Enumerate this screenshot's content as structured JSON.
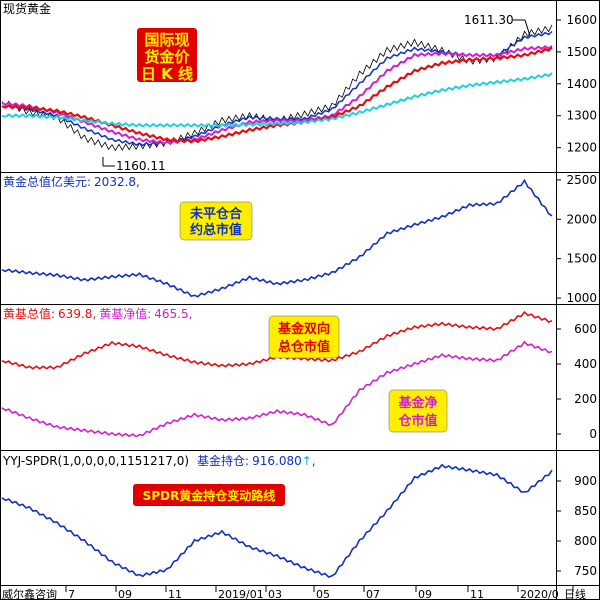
{
  "panel1": {
    "label": "现货黄金",
    "title_box": [
      "国际现",
      "货金价",
      "日 K 线"
    ],
    "high_label": "1611.30",
    "low_label": "1160.11",
    "yticks": [
      1600,
      1500,
      1400,
      1300,
      1200
    ]
  },
  "panel2": {
    "label_name": "黄金总值亿美元:",
    "label_value": "2032.8,",
    "title_box": [
      "未平仓合",
      "约总市值"
    ],
    "yticks": [
      2500,
      2000,
      1500,
      1000
    ]
  },
  "panel3": {
    "label1_name": "黄基总值:",
    "label1_value": "639.8,",
    "label2_name": "黄基净值:",
    "label2_value": "465.5,",
    "box_red": [
      "基金双向",
      "总仓市值"
    ],
    "box_magenta": [
      "基金净",
      "仓市值"
    ],
    "yticks": [
      600,
      400,
      200,
      0
    ]
  },
  "panel4": {
    "label_params": "YYJ-SPDR(1,0,0,0,0,1151217,0)",
    "label_name": "基金持仓:",
    "label_value": "916.080",
    "title_box": "SPDR黄金持仓变动路线",
    "yticks": [
      900,
      850,
      800,
      750
    ]
  },
  "footer": {
    "brand": "威尔鑫咨询",
    "xlabels": [
      "7",
      "09",
      "11",
      "2019/01",
      "03",
      "05",
      "07",
      "09",
      "11",
      "2020/0",
      "日线"
    ]
  },
  "colors": {
    "price": "#000000",
    "ma_short": "#1030c0",
    "ma_mid": "#d020d0",
    "ma_long": "#e01010",
    "ma_longest": "#20d0e0",
    "total_value": "#1030c0",
    "fund_gross": "#e01010",
    "fund_net": "#d020d0",
    "spdr": "#1030c0",
    "box_red": "#e00000",
    "box_yellow": "#ffee00"
  },
  "chart_data": [
    {
      "type": "line",
      "name": "现货黄金日K线",
      "ylim": [
        1130,
        1650
      ],
      "x": [
        0,
        5,
        10,
        15,
        20,
        25,
        30,
        35,
        40,
        45,
        50,
        55,
        60,
        65,
        70,
        75,
        80,
        85,
        90,
        95,
        100
      ],
      "series": [
        {
          "values": [
            1345,
            1310,
            1295,
            1230,
            1200,
            1205,
            1215,
            1245,
            1285,
            1300,
            1285,
            1305,
            1330,
            1430,
            1505,
            1530,
            1505,
            1470,
            1480,
            1555,
            1575
          ]
        },
        {
          "values": [
            1330,
            1320,
            1300,
            1260,
            1225,
            1210,
            1215,
            1235,
            1270,
            1295,
            1290,
            1290,
            1320,
            1400,
            1480,
            1510,
            1500,
            1490,
            1490,
            1545,
            1560
          ]
        },
        {
          "values": [
            1340,
            1330,
            1310,
            1280,
            1250,
            1225,
            1215,
            1225,
            1255,
            1280,
            1285,
            1285,
            1300,
            1360,
            1440,
            1490,
            1495,
            1490,
            1490,
            1510,
            1515
          ]
        },
        {
          "values": [
            1330,
            1325,
            1315,
            1295,
            1270,
            1245,
            1225,
            1220,
            1235,
            1255,
            1270,
            1280,
            1295,
            1330,
            1390,
            1440,
            1465,
            1475,
            1480,
            1490,
            1510
          ]
        },
        {
          "values": [
            1300,
            1300,
            1295,
            1285,
            1275,
            1270,
            1270,
            1270,
            1270,
            1272,
            1275,
            1280,
            1290,
            1310,
            1335,
            1360,
            1380,
            1395,
            1405,
            1415,
            1430
          ]
        }
      ]
    },
    {
      "type": "line",
      "name": "黄金总值亿美元",
      "ylim": [
        950,
        2550
      ],
      "x": [
        0,
        5,
        10,
        15,
        20,
        25,
        30,
        35,
        40,
        45,
        50,
        55,
        60,
        65,
        70,
        75,
        80,
        85,
        90,
        95,
        100
      ],
      "series": [
        {
          "values": [
            1360,
            1320,
            1290,
            1230,
            1270,
            1300,
            1180,
            1020,
            1120,
            1260,
            1180,
            1230,
            1320,
            1520,
            1820,
            1930,
            2030,
            2180,
            2200,
            2480,
            2030
          ]
        }
      ]
    },
    {
      "type": "line",
      "name": "黄基总值/黄基净值",
      "ylim": [
        -80,
        720
      ],
      "x": [
        0,
        5,
        10,
        15,
        20,
        25,
        30,
        35,
        40,
        45,
        50,
        55,
        60,
        65,
        70,
        75,
        80,
        85,
        90,
        95,
        100
      ],
      "series": [
        {
          "values": [
            420,
            380,
            380,
            460,
            520,
            500,
            450,
            410,
            390,
            400,
            440,
            430,
            420,
            470,
            560,
            610,
            630,
            610,
            600,
            690,
            640
          ]
        },
        {
          "values": [
            150,
            90,
            40,
            20,
            0,
            -10,
            60,
            110,
            80,
            90,
            130,
            110,
            50,
            250,
            350,
            400,
            450,
            430,
            420,
            520,
            465
          ]
        }
      ]
    },
    {
      "type": "line",
      "name": "SPDR黄金持仓",
      "ylim": [
        730,
        945
      ],
      "x": [
        0,
        5,
        10,
        15,
        20,
        25,
        30,
        35,
        40,
        45,
        50,
        55,
        60,
        65,
        70,
        75,
        80,
        85,
        90,
        95,
        100
      ],
      "series": [
        {
          "values": [
            872,
            855,
            830,
            800,
            765,
            742,
            752,
            800,
            815,
            790,
            775,
            755,
            740,
            800,
            850,
            905,
            925,
            918,
            910,
            880,
            916
          ]
        }
      ]
    }
  ]
}
